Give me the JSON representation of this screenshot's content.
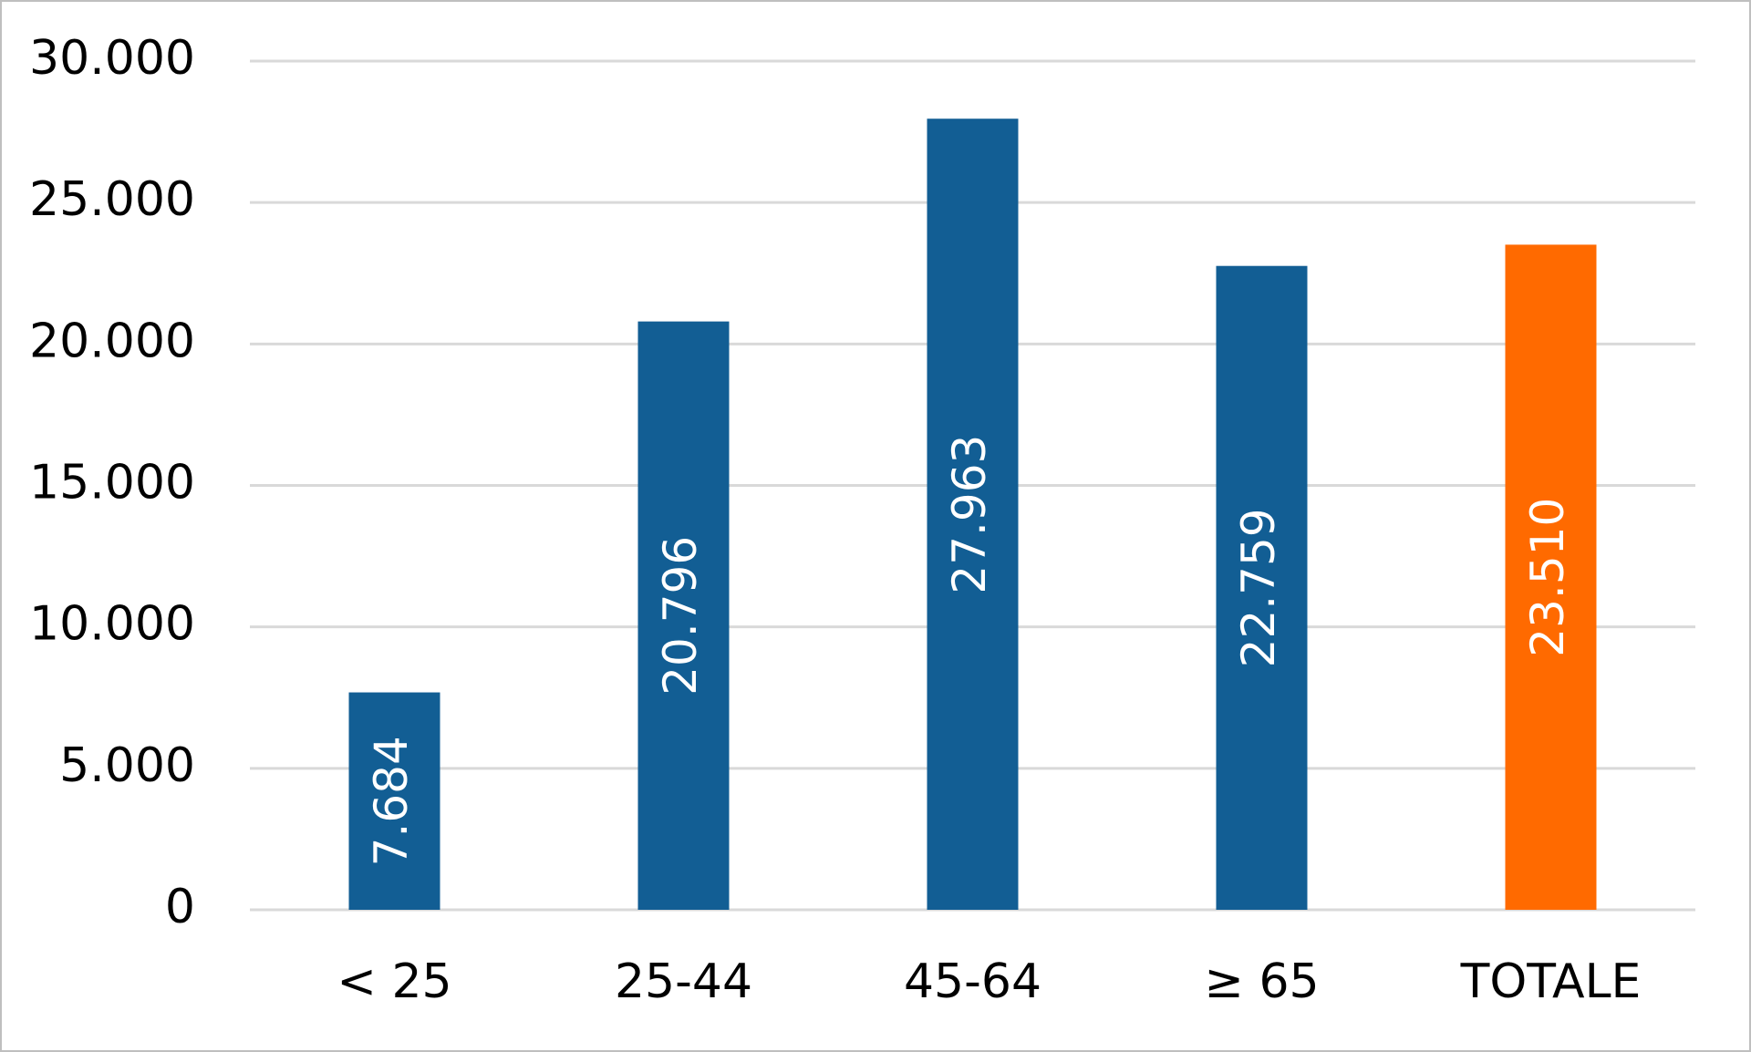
{
  "chart_data": {
    "type": "bar",
    "categories": [
      "< 25",
      "25-44",
      "45-64",
      "≥ 65",
      "TOTALE"
    ],
    "values": [
      7684,
      20796,
      27963,
      22759,
      23510
    ],
    "value_labels": [
      "7.684",
      "20.796",
      "27.963",
      "22.759",
      "23.510"
    ],
    "colors": [
      "#125e94",
      "#125e94",
      "#125e94",
      "#125e94",
      "#ff6a00"
    ],
    "ylim": [
      0,
      30000
    ],
    "yticks": [
      0,
      {
        "value": 5000,
        "label": "5.000"
      },
      {
        "value": 10000,
        "label": "10.000"
      },
      {
        "value": 15000,
        "label": "15.000"
      },
      {
        "value": 20000,
        "label": "20.000"
      },
      {
        "value": 25000,
        "label": "25.000"
      },
      {
        "value": 30000,
        "label": "30.000"
      }
    ],
    "grid": true
  }
}
